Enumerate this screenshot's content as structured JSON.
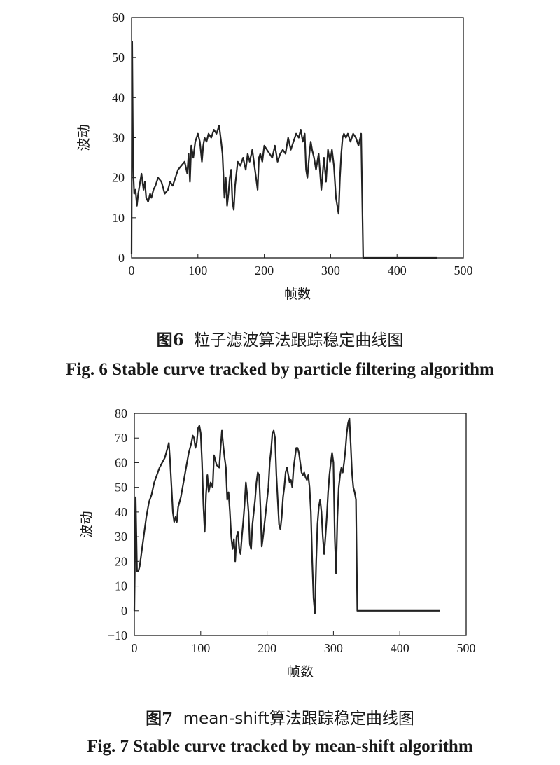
{
  "chart_data": [
    {
      "type": "line",
      "figure_label": "图6",
      "caption_cn": "粒子滤波算法跟踪稳定曲线图",
      "caption_en": "Fig. 6  Stable curve tracked by particle filtering algorithm",
      "xlabel": "帧数",
      "ylabel": "波动",
      "xlim": [
        0,
        500
      ],
      "ylim": [
        0,
        60
      ],
      "xticks": [
        0,
        100,
        200,
        300,
        400,
        500
      ],
      "yticks": [
        0,
        10,
        20,
        30,
        40,
        50,
        60
      ],
      "grid": false,
      "color": "#222222",
      "series": [
        {
          "x": [
            0,
            1,
            2,
            3,
            4,
            6,
            8,
            10,
            12,
            15,
            18,
            20,
            22,
            25,
            28,
            30,
            33,
            36,
            40,
            45,
            50,
            55,
            58,
            62,
            66,
            70,
            75,
            80,
            84,
            86,
            88,
            90,
            93,
            96,
            100,
            103,
            106,
            108,
            110,
            113,
            116,
            120,
            124,
            128,
            132,
            135,
            137,
            140,
            142,
            144,
            146,
            148,
            150,
            152,
            154,
            156,
            158,
            160,
            164,
            168,
            172,
            175,
            178,
            182,
            186,
            190,
            192,
            194,
            197,
            200,
            204,
            208,
            212,
            216,
            220,
            224,
            228,
            232,
            236,
            240,
            244,
            248,
            252,
            255,
            258,
            261,
            263,
            265,
            268,
            270,
            272,
            275,
            278,
            282,
            286,
            290,
            293,
            296,
            299,
            302,
            305,
            308,
            310,
            312,
            314,
            316,
            318,
            320,
            323,
            326,
            330,
            334,
            338,
            342,
            346,
            349,
            350,
            352,
            460
          ],
          "y": [
            1,
            54,
            30,
            20,
            16,
            17,
            13,
            16,
            18,
            21,
            17,
            19,
            15,
            14,
            16,
            15,
            17,
            18,
            20,
            19,
            16,
            17,
            19,
            18,
            20,
            22,
            23,
            24,
            21,
            26,
            19,
            28,
            25,
            29,
            31,
            29,
            24,
            28,
            30,
            29,
            31,
            30,
            32,
            31,
            33,
            29,
            26,
            15,
            20,
            13,
            16,
            20,
            22,
            14,
            12,
            18,
            21,
            24,
            23,
            25,
            22,
            26,
            24,
            27,
            22,
            17,
            25,
            26,
            24,
            28,
            27,
            26,
            25,
            28,
            24,
            26,
            27,
            26,
            30,
            27,
            29,
            31,
            30,
            32,
            29,
            31,
            22,
            20,
            26,
            29,
            27,
            25,
            22,
            26,
            17,
            25,
            19,
            27,
            24,
            27,
            23,
            15,
            13,
            11,
            20,
            26,
            30,
            31,
            30,
            31,
            29,
            31,
            30,
            28,
            31,
            0,
            0,
            0,
            0
          ]
        }
      ]
    },
    {
      "type": "line",
      "figure_label": "图7",
      "caption_cn": "mean-shift算法跟踪稳定曲线图",
      "caption_en": "Fig. 7  Stable curve tracked by mean-shift algorithm",
      "xlabel": "帧数",
      "ylabel": "波动",
      "xlim": [
        0,
        500
      ],
      "ylim": [
        -10,
        80
      ],
      "xticks": [
        0,
        100,
        200,
        300,
        400,
        500
      ],
      "yticks": [
        -10,
        0,
        10,
        20,
        30,
        40,
        50,
        60,
        70,
        80
      ],
      "grid": false,
      "color": "#222222",
      "series": [
        {
          "x": [
            0,
            2,
            4,
            6,
            8,
            10,
            14,
            18,
            22,
            26,
            30,
            34,
            38,
            42,
            46,
            50,
            52,
            54,
            56,
            58,
            60,
            62,
            64,
            66,
            70,
            74,
            78,
            82,
            86,
            88,
            90,
            92,
            94,
            96,
            98,
            100,
            102,
            104,
            106,
            108,
            110,
            112,
            115,
            118,
            120,
            124,
            128,
            130,
            132,
            134,
            136,
            138,
            140,
            142,
            144,
            146,
            148,
            150,
            152,
            154,
            156,
            158,
            160,
            162,
            164,
            166,
            168,
            170,
            172,
            174,
            176,
            178,
            180,
            182,
            184,
            186,
            188,
            190,
            192,
            194,
            196,
            198,
            200,
            202,
            204,
            206,
            208,
            210,
            212,
            214,
            216,
            218,
            220,
            222,
            224,
            226,
            228,
            230,
            232,
            234,
            236,
            238,
            240,
            242,
            244,
            246,
            248,
            250,
            252,
            254,
            256,
            258,
            260,
            262,
            264,
            266,
            268,
            270,
            272,
            274,
            276,
            278,
            280,
            282,
            284,
            286,
            288,
            290,
            292,
            294,
            296,
            298,
            300,
            302,
            304,
            306,
            308,
            310,
            312,
            314,
            316,
            318,
            320,
            322,
            324,
            326,
            328,
            330,
            332,
            334,
            336,
            338,
            340,
            342,
            344,
            346,
            348,
            350,
            352,
            460
          ],
          "y": [
            0,
            46,
            16,
            16,
            18,
            22,
            30,
            38,
            44,
            47,
            52,
            55,
            58,
            60,
            62,
            66,
            68,
            60,
            50,
            40,
            36,
            38,
            36,
            42,
            46,
            52,
            58,
            64,
            68,
            71,
            70,
            66,
            68,
            74,
            75,
            72,
            60,
            43,
            32,
            47,
            55,
            48,
            52,
            50,
            63,
            59,
            58,
            66,
            73,
            67,
            62,
            58,
            45,
            48,
            40,
            30,
            25,
            29,
            20,
            30,
            32,
            25,
            23,
            30,
            36,
            43,
            52,
            47,
            40,
            27,
            25,
            35,
            40,
            45,
            52,
            56,
            55,
            42,
            26,
            30,
            35,
            40,
            45,
            50,
            60,
            65,
            72,
            73,
            70,
            55,
            45,
            35,
            33,
            38,
            46,
            50,
            56,
            58,
            55,
            52,
            53,
            50,
            58,
            62,
            66,
            66,
            64,
            60,
            56,
            55,
            56,
            54,
            53,
            55,
            50,
            40,
            20,
            5,
            -1,
            20,
            35,
            42,
            45,
            40,
            30,
            23,
            30,
            38,
            48,
            55,
            60,
            64,
            60,
            30,
            15,
            38,
            50,
            55,
            58,
            56,
            60,
            65,
            72,
            76,
            78,
            68,
            56,
            50,
            48,
            45,
            0,
            0,
            0,
            0,
            0,
            0,
            0,
            0,
            0,
            0
          ]
        }
      ]
    }
  ]
}
